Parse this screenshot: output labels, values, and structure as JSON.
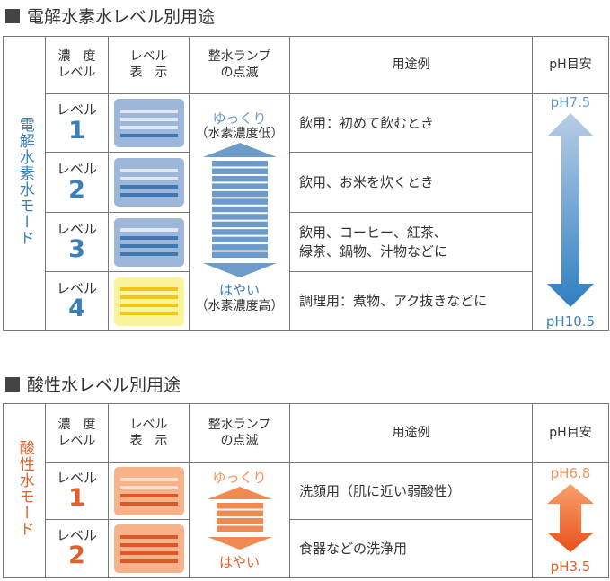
{
  "section1": {
    "title": "電解水素水レベル別用途",
    "mode": "電解水素水モード",
    "headers": {
      "concentration": "濃　度\nレベル",
      "display": "レベル\n表　示",
      "lamp": "整水ランプ\nの点滅",
      "usage": "用途例",
      "ph": "pH目安"
    },
    "level_label": "レベル",
    "rows": [
      {
        "num": "1",
        "usage": "飲用：初めて飲むとき",
        "lit_bars": 1
      },
      {
        "num": "2",
        "usage": "飲用、お米を炊くとき",
        "lit_bars": 2
      },
      {
        "num": "3",
        "usage": "飲用、コーヒー、紅茶、\n緑茶、鍋物、汁物などに",
        "lit_bars": 3
      },
      {
        "num": "4",
        "usage": "調理用：煮物、アク抜きなどに",
        "lit_bars": 4
      }
    ],
    "lamp_slow": "ゆっくり",
    "lamp_slow_note": "（水素濃度低）",
    "lamp_fast": "はやい",
    "lamp_fast_note": "（水素濃度高）",
    "ph_top": "pH7.5",
    "ph_bottom": "pH10.5",
    "accent": "#3b7fb8"
  },
  "section2": {
    "title": "酸性水レベル別用途",
    "mode": "酸性水モード",
    "headers": {
      "concentration": "濃　度\nレベル",
      "display": "レベル\n表　示",
      "lamp": "整水ランプ\nの点滅",
      "usage": "用途例",
      "ph": "pH目安"
    },
    "level_label": "レベル",
    "rows": [
      {
        "num": "1",
        "usage": "洗顔用（肌に近い弱酸性）",
        "lit_bars": 2
      },
      {
        "num": "2",
        "usage": "食器などの洗浄用",
        "lit_bars": 4
      }
    ],
    "lamp_slow": "ゆっくり",
    "lamp_fast": "はやい",
    "ph_top": "pH6.8",
    "ph_bottom": "pH3.5",
    "accent": "#e0622a"
  }
}
